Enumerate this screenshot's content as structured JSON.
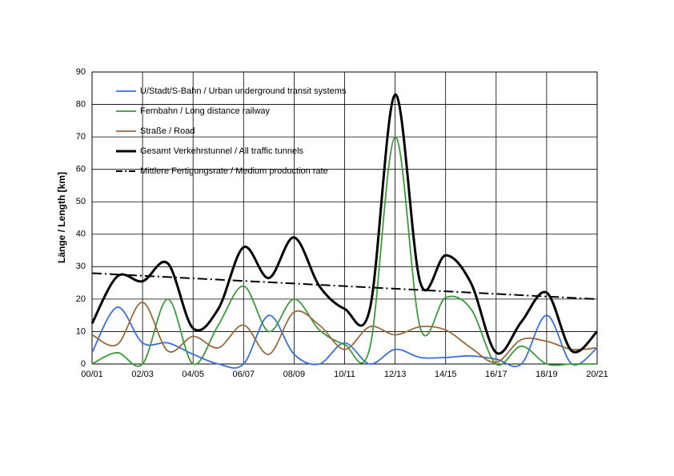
{
  "chart_data": {
    "type": "line",
    "ylabel": "Länge / Length [km]",
    "categories": [
      "00/01",
      null,
      "02/03",
      null,
      "04/05",
      null,
      "06/07",
      null,
      "08/09",
      null,
      "10/11",
      null,
      "12/13",
      null,
      "14/15",
      null,
      "16/17",
      null,
      "18/19",
      null,
      "20/21"
    ],
    "series": [
      {
        "name": "U/Stadt/S-Bahn / Urban underground transit systems",
        "color": "#3a6fd8",
        "linewidth": 1.8,
        "values": [
          3.5,
          17.5,
          6.5,
          6.5,
          3,
          0,
          0,
          15,
          3,
          0,
          6.5,
          0,
          4.5,
          2,
          2,
          2.5,
          1.5,
          0,
          15,
          0,
          5
        ]
      },
      {
        "name": "Fernbahn / Long distance railway",
        "color": "#3c9a3c",
        "linewidth": 1.8,
        "values": [
          0,
          3.5,
          0,
          20,
          0,
          12,
          24,
          10,
          20,
          10.5,
          6,
          5,
          70,
          11,
          20.5,
          17,
          0,
          5.5,
          0,
          0,
          0
        ]
      },
      {
        "name": "Straße / Road",
        "color": "#9a6a3c",
        "linewidth": 1.8,
        "values": [
          9,
          6,
          19,
          4,
          8.5,
          5,
          12,
          3,
          16,
          12,
          4.5,
          11.5,
          9,
          11.5,
          10.5,
          5,
          0.5,
          7.5,
          7,
          4.5,
          5
        ]
      },
      {
        "name": "Gesamt Verkehrstunnel / All traffic tunnels",
        "color": "#000000",
        "linewidth": 3,
        "values": [
          12.5,
          27,
          25.5,
          31,
          11,
          17,
          36,
          26.5,
          39,
          24,
          17,
          17,
          83,
          25,
          33.5,
          25,
          3.5,
          13,
          22,
          4,
          10
        ]
      },
      {
        "name": "Mittlere Fertigungsrate / Medium production rate",
        "color": "#000000",
        "linewidth": 2,
        "dash": "dash-dot",
        "smooth": false,
        "values": [
          28,
          27.6,
          27.2,
          26.8,
          26.4,
          26,
          25.6,
          25.2,
          24.8,
          24.4,
          24,
          23.6,
          23.2,
          22.8,
          22.4,
          22,
          21.6,
          21.2,
          20.8,
          20.4,
          20
        ]
      }
    ],
    "ylim": [
      0,
      90
    ],
    "yticks": [
      0,
      10,
      20,
      30,
      40,
      50,
      60,
      70,
      80,
      90
    ],
    "grid": true,
    "smooth": true
  }
}
